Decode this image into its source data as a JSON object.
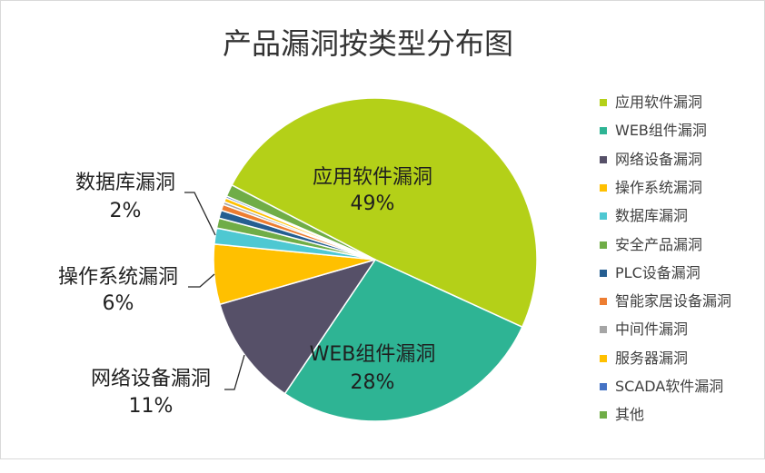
{
  "chart_data": {
    "type": "pie",
    "title": "产品漏洞按类型分布图",
    "categories": [
      "应用软件漏洞",
      "WEB组件漏洞",
      "网络设备漏洞",
      "操作系统漏洞",
      "数据库漏洞",
      "安全产品漏洞",
      "PLC设备漏洞",
      "智能家居设备漏洞",
      "中间件漏洞",
      "服务器漏洞",
      "SCADA软件漏洞",
      "其他"
    ],
    "values": [
      49.2,
      27.6,
      11.1,
      6.0,
      1.6,
      1.0,
      0.8,
      0.6,
      0.3,
      0.4,
      0.2,
      1.2
    ],
    "data_labels": [
      "49%",
      "28%",
      "11%",
      "6%",
      "2%",
      null,
      null,
      null,
      null,
      null,
      null,
      null
    ],
    "colors": [
      "#B4D018",
      "#2EB494",
      "#565068",
      "#FFC000",
      "#4EC8D2",
      "#70AD47",
      "#255E91",
      "#ED7D31",
      "#A5A5A5",
      "#FFC000",
      "#4472C4",
      "#70AD47"
    ],
    "legend": "right"
  }
}
